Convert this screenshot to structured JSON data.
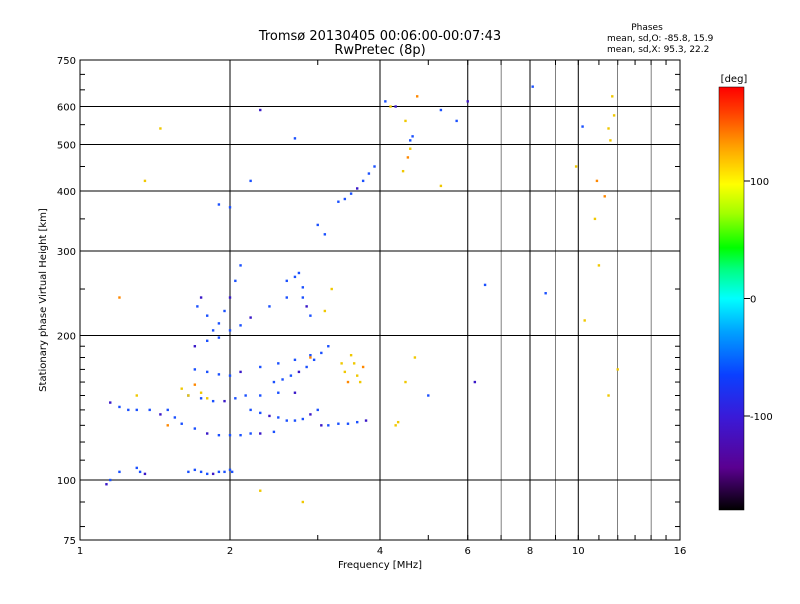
{
  "chart_data": {
    "type": "scatter",
    "title": "Tromsø 20130405 00:06:00-00:07:43",
    "subtitle": "RwPretec (8p)",
    "xlabel": "Frequency [MHz]",
    "ylabel": "Stationary phase Virtual Height [km]",
    "xscale": "log",
    "yscale": "log",
    "xlim": [
      1,
      16
    ],
    "ylim": [
      75,
      750
    ],
    "x_ticks": [
      1,
      2,
      4,
      6,
      8,
      10,
      16
    ],
    "y_ticks": [
      75,
      100,
      200,
      300,
      400,
      500,
      600,
      750
    ],
    "grid": true,
    "stats": {
      "heading": "Phases",
      "line_o": "mean, sd,O:  -85.8, 15.9",
      "line_x": "mean, sd,X:  95.3, 22.2"
    },
    "colorbar": {
      "label": "[deg]",
      "range": [
        -180,
        180
      ],
      "ticks": [
        100,
        0,
        -100
      ]
    },
    "series": [
      {
        "values": [
          [
            1.13,
            98
          ],
          [
            1.15,
            100
          ],
          [
            1.2,
            104
          ],
          [
            1.3,
            106
          ],
          [
            1.32,
            104
          ],
          [
            1.35,
            103
          ],
          [
            1.65,
            104
          ],
          [
            1.7,
            105
          ],
          [
            1.75,
            104
          ],
          [
            1.8,
            103
          ],
          [
            1.85,
            103
          ],
          [
            1.9,
            104
          ],
          [
            1.95,
            104
          ],
          [
            2.0,
            105
          ],
          [
            2.02,
            104
          ],
          [
            1.15,
            145
          ],
          [
            1.2,
            142
          ],
          [
            1.25,
            140
          ],
          [
            1.3,
            140
          ],
          [
            1.38,
            140
          ],
          [
            1.45,
            137
          ],
          [
            1.5,
            140
          ],
          [
            1.55,
            135
          ],
          [
            1.6,
            131
          ],
          [
            1.7,
            128
          ],
          [
            1.8,
            125
          ],
          [
            1.9,
            124
          ],
          [
            2.0,
            124
          ],
          [
            2.1,
            124
          ],
          [
            2.2,
            125
          ],
          [
            2.3,
            125
          ],
          [
            2.45,
            126
          ],
          [
            1.65,
            150
          ],
          [
            1.75,
            148
          ],
          [
            1.85,
            146
          ],
          [
            1.95,
            146
          ],
          [
            2.05,
            148
          ],
          [
            2.15,
            150
          ],
          [
            2.3,
            150
          ],
          [
            2.5,
            152
          ],
          [
            2.7,
            152
          ],
          [
            1.7,
            170
          ],
          [
            1.8,
            168
          ],
          [
            1.9,
            166
          ],
          [
            2.0,
            165
          ],
          [
            2.1,
            168
          ],
          [
            2.3,
            172
          ],
          [
            2.5,
            175
          ],
          [
            2.7,
            178
          ],
          [
            2.9,
            182
          ],
          [
            1.7,
            190
          ],
          [
            1.8,
            195
          ],
          [
            1.9,
            198
          ],
          [
            2.0,
            205
          ],
          [
            2.1,
            210
          ],
          [
            2.2,
            218
          ],
          [
            2.4,
            230
          ],
          [
            2.6,
            240
          ],
          [
            2.8,
            252
          ],
          [
            1.72,
            230
          ],
          [
            1.75,
            240
          ],
          [
            1.8,
            220
          ],
          [
            1.85,
            205
          ],
          [
            1.9,
            212
          ],
          [
            1.95,
            225
          ],
          [
            2.0,
            240
          ],
          [
            2.05,
            260
          ],
          [
            2.1,
            280
          ],
          [
            2.2,
            140
          ],
          [
            2.3,
            138
          ],
          [
            2.4,
            136
          ],
          [
            2.5,
            135
          ],
          [
            2.6,
            133
          ],
          [
            2.7,
            133
          ],
          [
            2.8,
            134
          ],
          [
            2.9,
            137
          ],
          [
            3.0,
            140
          ],
          [
            2.45,
            160
          ],
          [
            2.55,
            162
          ],
          [
            2.65,
            165
          ],
          [
            2.75,
            168
          ],
          [
            2.85,
            172
          ],
          [
            2.95,
            178
          ],
          [
            3.05,
            184
          ],
          [
            3.15,
            190
          ],
          [
            3.05,
            130
          ],
          [
            3.15,
            130
          ],
          [
            3.3,
            131
          ],
          [
            3.45,
            131
          ],
          [
            3.6,
            132
          ],
          [
            3.75,
            133
          ],
          [
            2.6,
            260
          ],
          [
            2.7,
            265
          ],
          [
            2.75,
            270
          ],
          [
            2.8,
            240
          ],
          [
            2.85,
            230
          ],
          [
            2.9,
            220
          ],
          [
            3.3,
            380
          ],
          [
            3.4,
            385
          ],
          [
            3.5,
            395
          ],
          [
            3.6,
            405
          ],
          [
            3.7,
            420
          ],
          [
            3.8,
            435
          ],
          [
            3.9,
            450
          ],
          [
            4.1,
            615
          ],
          [
            4.3,
            600
          ],
          [
            4.6,
            510
          ],
          [
            4.65,
            520
          ],
          [
            5.3,
            590
          ],
          [
            5.7,
            560
          ],
          [
            6.0,
            615
          ],
          [
            6.5,
            255
          ],
          [
            8.1,
            660
          ],
          [
            8.6,
            245
          ],
          [
            5.0,
            150
          ],
          [
            6.2,
            160
          ],
          [
            10.2,
            545
          ],
          [
            1.9,
            375
          ],
          [
            2.0,
            370
          ],
          [
            2.2,
            420
          ],
          [
            2.3,
            590
          ],
          [
            2.7,
            515
          ],
          [
            3.1,
            325
          ],
          [
            3.0,
            340
          ]
        ]
      },
      {
        "values": [
          [
            1.2,
            240
          ],
          [
            1.35,
            420
          ],
          [
            1.45,
            540
          ],
          [
            1.6,
            155
          ],
          [
            1.65,
            150
          ],
          [
            1.7,
            158
          ],
          [
            1.75,
            152
          ],
          [
            1.8,
            148
          ],
          [
            2.3,
            95
          ],
          [
            2.8,
            90
          ],
          [
            2.9,
            180
          ],
          [
            3.1,
            225
          ],
          [
            3.2,
            250
          ],
          [
            3.35,
            175
          ],
          [
            3.4,
            168
          ],
          [
            3.45,
            160
          ],
          [
            3.5,
            182
          ],
          [
            3.55,
            175
          ],
          [
            3.6,
            165
          ],
          [
            3.65,
            160
          ],
          [
            3.7,
            172
          ],
          [
            4.3,
            130
          ],
          [
            4.35,
            132
          ],
          [
            4.5,
            160
          ],
          [
            4.7,
            180
          ],
          [
            4.55,
            470
          ],
          [
            4.6,
            490
          ],
          [
            4.45,
            440
          ],
          [
            4.2,
            600
          ],
          [
            4.5,
            560
          ],
          [
            4.75,
            630
          ],
          [
            5.3,
            410
          ],
          [
            9.9,
            450
          ],
          [
            10.8,
            350
          ],
          [
            11.0,
            280
          ],
          [
            11.3,
            390
          ],
          [
            11.5,
            540
          ],
          [
            11.6,
            510
          ],
          [
            11.7,
            630
          ],
          [
            11.8,
            575
          ],
          [
            10.9,
            420
          ],
          [
            10.3,
            215
          ],
          [
            11.5,
            150
          ],
          [
            12.0,
            170
          ],
          [
            1.3,
            150
          ],
          [
            1.5,
            130
          ]
        ]
      }
    ]
  }
}
